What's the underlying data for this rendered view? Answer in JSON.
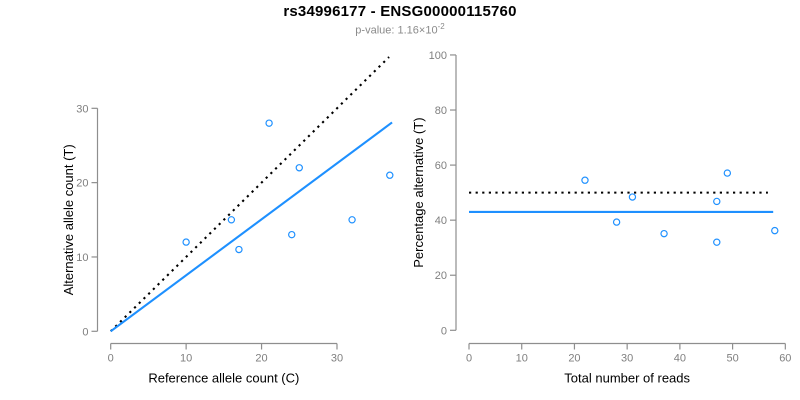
{
  "header": {
    "title": "rs34996177 - ENSG00000115760",
    "pvalue_base": "p-value: 1.16×10",
    "pvalue_exponent": "-2"
  },
  "colors": {
    "point_blue": "#1E90FF",
    "line_blue": "#1E90FF",
    "dotted_black": "#000000",
    "axis": "#8E8E8E",
    "tick_label": "#7F7F7F",
    "axis_title": "#000000",
    "subtitle": "#8A8A8A"
  },
  "chart_data": [
    {
      "type": "scatter",
      "name": "allele-counts",
      "xlabel": "Reference allele count (C)",
      "ylabel": "Alternative allele count (T)",
      "xticks": [
        0,
        10,
        20,
        30
      ],
      "yticks": [
        0,
        10,
        20,
        30
      ],
      "xlim": [
        0,
        37.5
      ],
      "ylim": [
        0,
        37
      ],
      "grid": false,
      "points": [
        [
          10,
          12
        ],
        [
          16,
          15
        ],
        [
          17,
          11
        ],
        [
          21,
          28
        ],
        [
          24,
          13
        ],
        [
          25,
          22
        ],
        [
          32,
          15
        ],
        [
          37,
          21
        ]
      ],
      "lines": [
        {
          "name": "identity-line",
          "style": "dotted",
          "color": "black",
          "x1": 0,
          "y1": 0,
          "x2": 36.9,
          "y2": 36.9
        },
        {
          "name": "regression-line",
          "style": "solid",
          "color": "blue",
          "x1": 0,
          "y1": 0,
          "x2": 37.3,
          "y2": 28.1
        }
      ]
    },
    {
      "type": "scatter",
      "name": "percentage-alternative",
      "xlabel": "Total number of reads",
      "ylabel": "Percentage alternative (T)",
      "xticks": [
        0,
        10,
        20,
        30,
        40,
        50,
        60
      ],
      "yticks": [
        0,
        20,
        40,
        60,
        80,
        100
      ],
      "xlim": [
        0,
        60
      ],
      "ylim": [
        0,
        100
      ],
      "grid": false,
      "points": [
        [
          22,
          54.5
        ],
        [
          28,
          39.3
        ],
        [
          31,
          48.4
        ],
        [
          37,
          35.1
        ],
        [
          47,
          32.0
        ],
        [
          47,
          46.8
        ],
        [
          49,
          57.1
        ],
        [
          58,
          36.2
        ]
      ],
      "lines": [
        {
          "name": "expected-50pct-line",
          "style": "dotted",
          "color": "black",
          "x1": 0,
          "y1": 50,
          "x2": 56.7,
          "y2": 50
        },
        {
          "name": "mean-percentage-line",
          "style": "solid",
          "color": "blue",
          "x1": 0,
          "y1": 43,
          "x2": 57.7,
          "y2": 43
        }
      ]
    }
  ]
}
